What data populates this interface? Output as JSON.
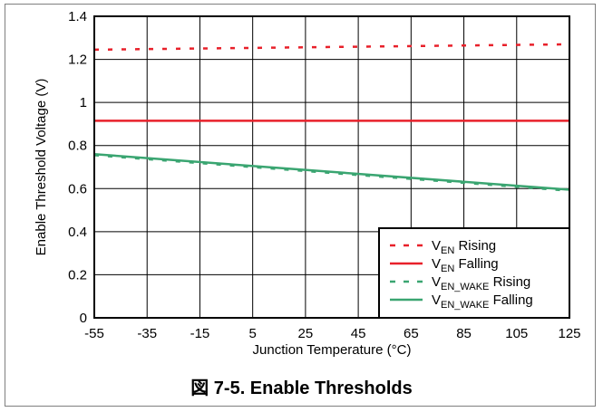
{
  "caption": "図 7-5. Enable Thresholds",
  "chart_data": {
    "type": "line",
    "xlabel": "Junction Temperature (°C)",
    "ylabel": "Enable Threshold Voltage (V)",
    "xlim": [
      -55,
      125
    ],
    "ylim": [
      0,
      1.4
    ],
    "x_ticks": [
      "-55",
      "-35",
      "-15",
      "5",
      "25",
      "45",
      "65",
      "85",
      "105",
      "125"
    ],
    "y_ticks": [
      "0",
      "0.2",
      "0.4",
      "0.6",
      "0.8",
      "1",
      "1.2",
      "1.4"
    ],
    "grid": true,
    "legend_position": "bottom-right",
    "series": [
      {
        "name": "VEN Rising",
        "legend_main": "V",
        "legend_sub": "EN",
        "legend_suffix": " Rising",
        "color": "#e8202a",
        "style": "dotted",
        "x": [
          -55,
          125
        ],
        "y": [
          1.245,
          1.27
        ]
      },
      {
        "name": "VEN Falling",
        "legend_main": "V",
        "legend_sub": "EN",
        "legend_suffix": " Falling",
        "color": "#e8202a",
        "style": "solid",
        "x": [
          -55,
          125
        ],
        "y": [
          0.915,
          0.915
        ]
      },
      {
        "name": "VEN_WAKE Rising",
        "legend_main": "V",
        "legend_sub": "EN_WAKE",
        "legend_suffix": " Rising",
        "color": "#3aa571",
        "style": "dotted",
        "x": [
          -55,
          125
        ],
        "y": [
          0.755,
          0.59
        ]
      },
      {
        "name": "VEN_WAKE Falling",
        "legend_main": "V",
        "legend_sub": "EN_WAKE",
        "legend_suffix": " Falling",
        "color": "#3aa571",
        "style": "solid",
        "x": [
          -55,
          125
        ],
        "y": [
          0.76,
          0.595
        ]
      }
    ]
  }
}
